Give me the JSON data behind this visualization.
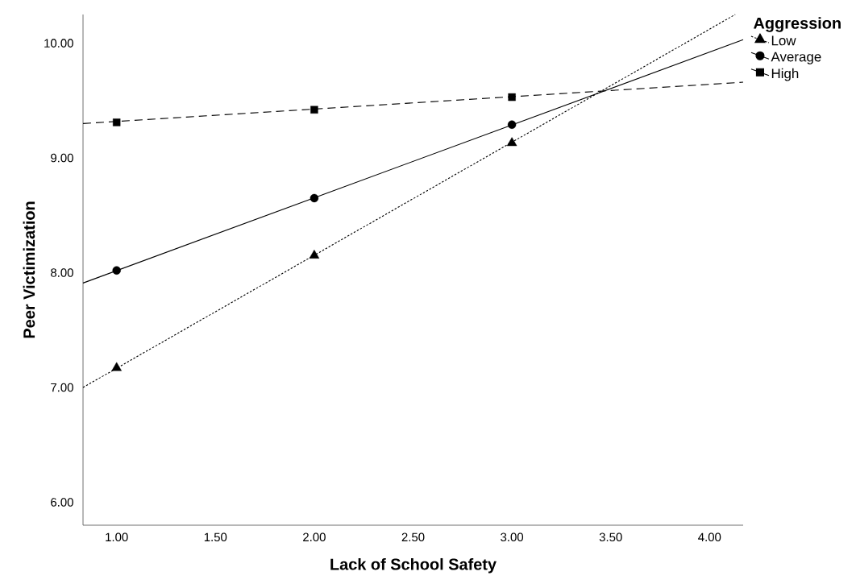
{
  "chart_data": {
    "type": "scatter",
    "xlabel": "Lack of School Safety",
    "ylabel": "Peer Victimization",
    "legend_title": "Aggression",
    "legend": "top right",
    "xlim": [
      0.83,
      4.17
    ],
    "ylim": [
      5.8,
      10.25
    ],
    "xticks": [
      {
        "value": 1,
        "label": "1.00"
      },
      {
        "value": 1.5,
        "label": "1.50"
      },
      {
        "value": 2,
        "label": "2.00"
      },
      {
        "value": 2.5,
        "label": "2.50"
      },
      {
        "value": 3,
        "label": "3.00"
      },
      {
        "value": 3.5,
        "label": "3.50"
      },
      {
        "value": 4,
        "label": "4.00"
      }
    ],
    "yticks": [
      {
        "value": 6,
        "label": "6.00"
      },
      {
        "value": 7,
        "label": "7.00"
      },
      {
        "value": 8,
        "label": "8.00"
      },
      {
        "value": 9,
        "label": "9.00"
      },
      {
        "value": 10,
        "label": "10.00"
      }
    ],
    "series": [
      {
        "name": "Low",
        "color": "#000000",
        "marker": "triangle",
        "line_style": "dotted",
        "x": [
          1,
          2,
          3
        ],
        "values": [
          7.17,
          8.15,
          9.13
        ]
      },
      {
        "name": "Average",
        "color": "#000000",
        "marker": "circle",
        "line_style": "solid",
        "x": [
          1,
          2,
          3
        ],
        "values": [
          8.02,
          8.65,
          9.29
        ]
      },
      {
        "name": "High",
        "color": "#000000",
        "marker": "square",
        "line_style": "dashed",
        "x": [
          1,
          2,
          3
        ],
        "values": [
          9.31,
          9.42,
          9.53
        ]
      },
      {
        "type": "line",
        "color": "#000000",
        "marker": "none",
        "line_style": "dotted",
        "x": [
          0.83,
          4.13
        ],
        "values": [
          7.0,
          10.25
        ]
      },
      {
        "type": "line",
        "color": "#000000",
        "marker": "none",
        "line_style": "solid",
        "x": [
          0.83,
          4.17
        ],
        "values": [
          7.91,
          10.03
        ]
      },
      {
        "type": "line",
        "color": "#000000",
        "marker": "none",
        "line_style": "dashed",
        "x": [
          0.83,
          4.17
        ],
        "values": [
          9.3,
          9.66
        ]
      }
    ]
  }
}
